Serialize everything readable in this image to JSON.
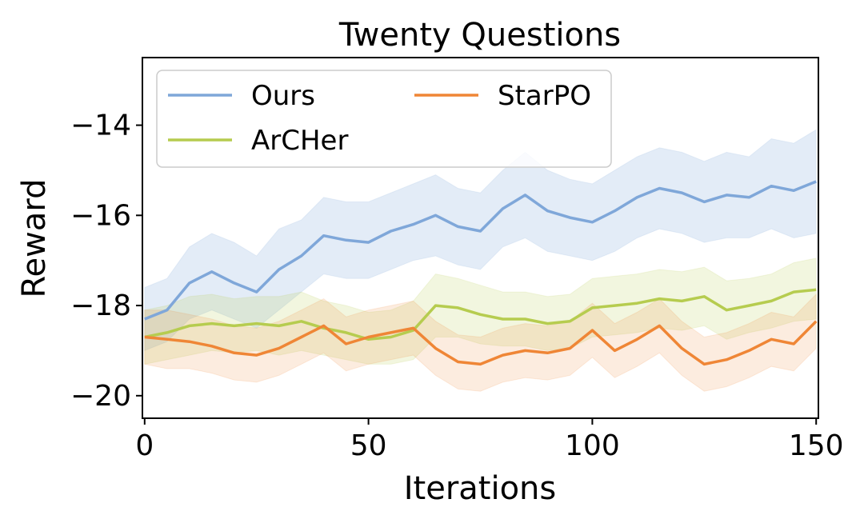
{
  "chart_data": {
    "type": "line",
    "title": "Twenty Questions",
    "xlabel": "Iterations",
    "ylabel": "Reward",
    "xlim": [
      -0.5,
      150.5
    ],
    "ylim": [
      -20.5,
      -12.5
    ],
    "xticks": [
      0,
      50,
      100,
      150
    ],
    "xtick_labels": [
      "0",
      "50",
      "100",
      "150"
    ],
    "yticks": [
      -20,
      -18,
      -16,
      -14
    ],
    "ytick_labels": [
      "−20",
      "−18",
      "−16",
      "−14"
    ],
    "grid": false,
    "legend": {
      "position": "top-left",
      "columns": 2
    },
    "series": [
      {
        "name": "Ours",
        "color": "#7fa7d9",
        "band_opacity": 0.22,
        "x": [
          0,
          5,
          10,
          15,
          20,
          25,
          30,
          35,
          40,
          45,
          50,
          55,
          60,
          65,
          70,
          75,
          80,
          85,
          90,
          95,
          100,
          105,
          110,
          115,
          120,
          125,
          130,
          135,
          140,
          145,
          150
        ],
        "values": [
          -18.3,
          -18.1,
          -17.5,
          -17.25,
          -17.5,
          -17.7,
          -17.2,
          -16.9,
          -16.45,
          -16.55,
          -16.6,
          -16.35,
          -16.2,
          -16.0,
          -16.25,
          -16.35,
          -15.85,
          -15.55,
          -15.9,
          -16.05,
          -16.15,
          -15.9,
          -15.6,
          -15.4,
          -15.5,
          -15.7,
          -15.55,
          -15.6,
          -15.35,
          -15.45,
          -15.25
        ],
        "lower": [
          -19.0,
          -18.8,
          -18.3,
          -18.1,
          -18.3,
          -18.5,
          -18.1,
          -17.7,
          -17.3,
          -17.4,
          -17.4,
          -17.2,
          -17.0,
          -16.9,
          -17.1,
          -17.2,
          -16.7,
          -16.5,
          -16.8,
          -16.9,
          -17.0,
          -16.8,
          -16.5,
          -16.3,
          -16.4,
          -16.6,
          -16.5,
          -16.5,
          -16.3,
          -16.5,
          -16.4
        ],
        "upper": [
          -17.6,
          -17.4,
          -16.7,
          -16.4,
          -16.6,
          -16.9,
          -16.3,
          -16.1,
          -15.6,
          -15.7,
          -15.7,
          -15.5,
          -15.3,
          -15.1,
          -15.4,
          -15.5,
          -15.0,
          -14.6,
          -15.0,
          -15.2,
          -15.3,
          -15.0,
          -14.7,
          -14.5,
          -14.6,
          -14.8,
          -14.6,
          -14.7,
          -14.3,
          -14.4,
          -14.1
        ]
      },
      {
        "name": "ArCHer",
        "color": "#b6cc4f",
        "band_opacity": 0.18,
        "x": [
          0,
          5,
          10,
          15,
          20,
          25,
          30,
          35,
          40,
          45,
          50,
          55,
          60,
          65,
          70,
          75,
          80,
          85,
          90,
          95,
          100,
          105,
          110,
          115,
          120,
          125,
          130,
          135,
          140,
          145,
          150
        ],
        "values": [
          -18.7,
          -18.6,
          -18.45,
          -18.4,
          -18.45,
          -18.4,
          -18.45,
          -18.35,
          -18.5,
          -18.6,
          -18.75,
          -18.7,
          -18.55,
          -18.0,
          -18.05,
          -18.2,
          -18.3,
          -18.3,
          -18.4,
          -18.35,
          -18.05,
          -18.0,
          -17.95,
          -17.85,
          -17.9,
          -17.8,
          -18.1,
          -18.0,
          -17.9,
          -17.7,
          -17.65
        ],
        "lower": [
          -19.3,
          -19.2,
          -19.1,
          -19.0,
          -19.05,
          -19.0,
          -19.1,
          -19.0,
          -19.1,
          -19.2,
          -19.3,
          -19.3,
          -19.2,
          -18.7,
          -18.7,
          -18.85,
          -18.9,
          -18.9,
          -19.0,
          -18.95,
          -18.7,
          -18.65,
          -18.6,
          -18.5,
          -18.55,
          -18.45,
          -18.75,
          -18.6,
          -18.5,
          -18.35,
          -18.3
        ],
        "upper": [
          -18.1,
          -18.0,
          -17.8,
          -17.75,
          -17.85,
          -17.8,
          -17.8,
          -17.7,
          -17.9,
          -18.0,
          -18.15,
          -18.1,
          -17.9,
          -17.3,
          -17.4,
          -17.55,
          -17.7,
          -17.7,
          -17.8,
          -17.75,
          -17.4,
          -17.35,
          -17.3,
          -17.2,
          -17.25,
          -17.15,
          -17.45,
          -17.4,
          -17.3,
          -17.05,
          -16.95
        ]
      },
      {
        "name": "StarPO",
        "color": "#ef8636",
        "band_opacity": 0.16,
        "x": [
          0,
          5,
          10,
          15,
          20,
          25,
          30,
          35,
          40,
          45,
          50,
          55,
          60,
          65,
          70,
          75,
          80,
          85,
          90,
          95,
          100,
          105,
          110,
          115,
          120,
          125,
          130,
          135,
          140,
          145,
          150
        ],
        "values": [
          -18.7,
          -18.75,
          -18.8,
          -18.9,
          -19.05,
          -19.1,
          -18.95,
          -18.7,
          -18.45,
          -18.85,
          -18.7,
          -18.6,
          -18.5,
          -18.95,
          -19.25,
          -19.3,
          -19.1,
          -19.0,
          -19.05,
          -18.95,
          -18.55,
          -19.0,
          -18.75,
          -18.45,
          -18.95,
          -19.3,
          -19.2,
          -19.0,
          -18.75,
          -18.85,
          -18.35
        ],
        "lower": [
          -19.3,
          -19.4,
          -19.4,
          -19.5,
          -19.65,
          -19.7,
          -19.55,
          -19.3,
          -19.05,
          -19.45,
          -19.3,
          -19.2,
          -19.1,
          -19.55,
          -19.85,
          -19.9,
          -19.7,
          -19.6,
          -19.65,
          -19.55,
          -19.15,
          -19.6,
          -19.35,
          -19.05,
          -19.55,
          -19.9,
          -19.8,
          -19.6,
          -19.35,
          -19.45,
          -18.95
        ],
        "upper": [
          -18.1,
          -18.1,
          -18.2,
          -18.3,
          -18.45,
          -18.5,
          -18.35,
          -18.1,
          -17.85,
          -18.25,
          -18.1,
          -18.0,
          -17.9,
          -18.35,
          -18.65,
          -18.7,
          -18.5,
          -18.4,
          -18.45,
          -18.35,
          -17.95,
          -18.4,
          -18.15,
          -17.85,
          -18.35,
          -18.7,
          -18.6,
          -18.4,
          -18.15,
          -18.25,
          -17.75
        ]
      }
    ]
  }
}
